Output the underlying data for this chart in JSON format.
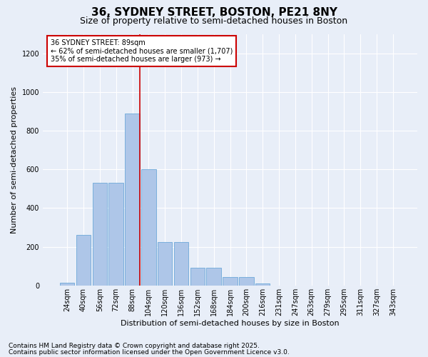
{
  "title": "36, SYDNEY STREET, BOSTON, PE21 8NY",
  "subtitle": "Size of property relative to semi-detached houses in Boston",
  "xlabel": "Distribution of semi-detached houses by size in Boston",
  "ylabel": "Number of semi-detached properties",
  "categories": [
    "24sqm",
    "40sqm",
    "56sqm",
    "72sqm",
    "88sqm",
    "104sqm",
    "120sqm",
    "136sqm",
    "152sqm",
    "168sqm",
    "184sqm",
    "200sqm",
    "216sqm",
    "231sqm",
    "247sqm",
    "263sqm",
    "279sqm",
    "295sqm",
    "311sqm",
    "327sqm",
    "343sqm"
  ],
  "values": [
    15,
    260,
    530,
    530,
    890,
    600,
    225,
    225,
    90,
    90,
    45,
    45,
    10,
    0,
    0,
    0,
    0,
    0,
    0,
    0,
    0
  ],
  "bar_color": "#aec6e8",
  "bar_edgecolor": "#5a9fd4",
  "vline_x_index": 4,
  "vline_color": "#cc0000",
  "annotation_title": "36 SYDNEY STREET: 89sqm",
  "annotation_line1": "← 62% of semi-detached houses are smaller (1,707)",
  "annotation_line2": "35% of semi-detached houses are larger (973) →",
  "annotation_box_color": "#cc0000",
  "ylim": [
    0,
    1300
  ],
  "yticks": [
    0,
    200,
    400,
    600,
    800,
    1000,
    1200
  ],
  "footnote1": "Contains HM Land Registry data © Crown copyright and database right 2025.",
  "footnote2": "Contains public sector information licensed under the Open Government Licence v3.0.",
  "bg_color": "#e8eef8",
  "plot_bg_color": "#e8eef8",
  "grid_color": "#ffffff",
  "title_fontsize": 11,
  "subtitle_fontsize": 9,
  "label_fontsize": 8,
  "tick_fontsize": 7,
  "footnote_fontsize": 6.5
}
